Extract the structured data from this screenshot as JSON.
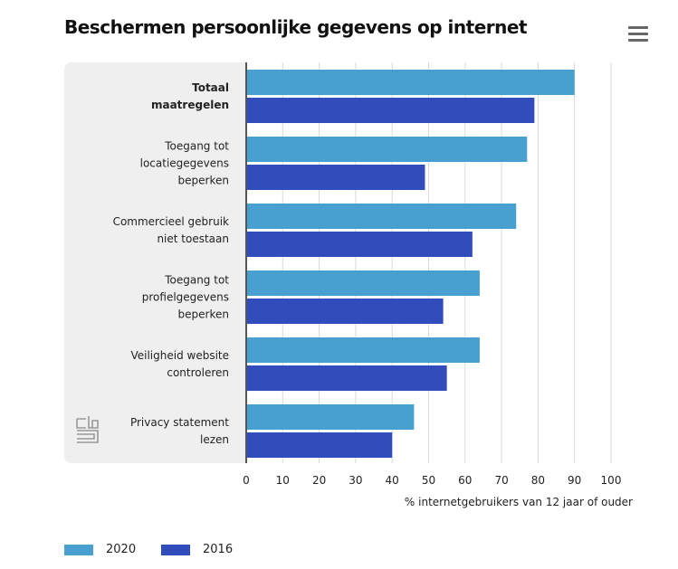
{
  "chart_data": {
    "type": "bar",
    "orientation": "horizontal",
    "title": "Beschermen persoonlijke gegevens op internet",
    "categories": [
      [
        "Totaal",
        "maatregelen"
      ],
      [
        "Toegang tot",
        "locatiegegevens",
        "beperken"
      ],
      [
        "Commercieel gebruik",
        "niet toestaan"
      ],
      [
        "Toegang tot",
        "profielgegevens",
        "beperken"
      ],
      [
        "Veiligheid website",
        "controleren"
      ],
      [
        "Privacy statement",
        "lezen"
      ]
    ],
    "series": [
      {
        "name": "2020",
        "color": "#47a0d0",
        "values": [
          90,
          77,
          74,
          64,
          64,
          46
        ]
      },
      {
        "name": "2016",
        "color": "#304dbb",
        "values": [
          79,
          49,
          62,
          54,
          55,
          40
        ]
      }
    ],
    "xlabel": "% internetgebruikers van 12 jaar of ouder",
    "xlim": [
      0,
      100
    ],
    "ticks": [
      "0",
      "10",
      "20",
      "30",
      "40",
      "50",
      "60",
      "70",
      "80",
      "90",
      "100"
    ],
    "grid": true,
    "legend": "bottom-left"
  },
  "menu_icon": "hamburger-menu-icon",
  "logo": "cbs"
}
